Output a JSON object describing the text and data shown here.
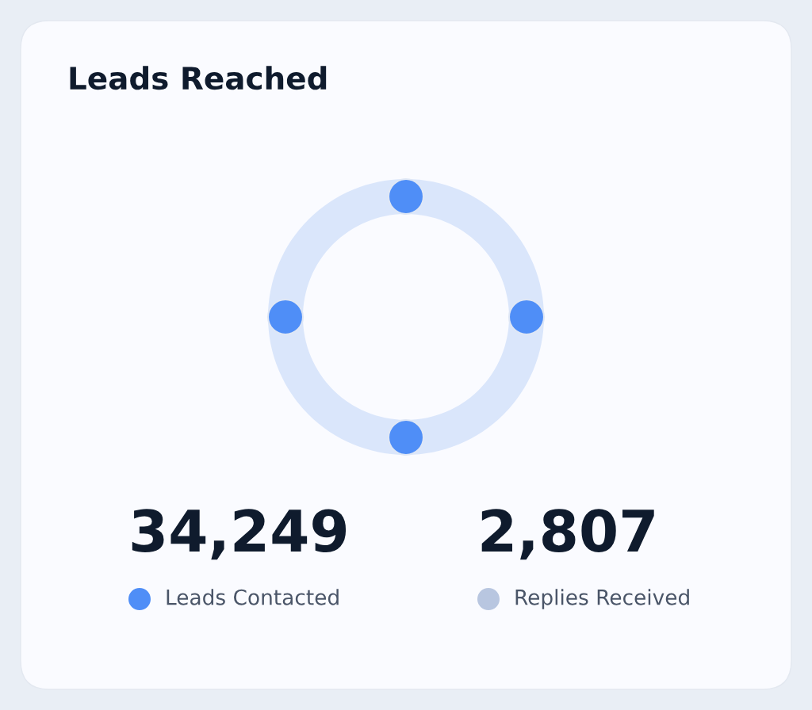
{
  "chart_data": {
    "type": "other",
    "title": "Leads Reached",
    "categories": [
      "Leads Contacted",
      "Replies Received"
    ],
    "values": [
      34249,
      2807
    ],
    "value_labels": [
      "34,249",
      "2,807"
    ],
    "colors": [
      "#4f8ef7",
      "#b8c6e0"
    ]
  }
}
